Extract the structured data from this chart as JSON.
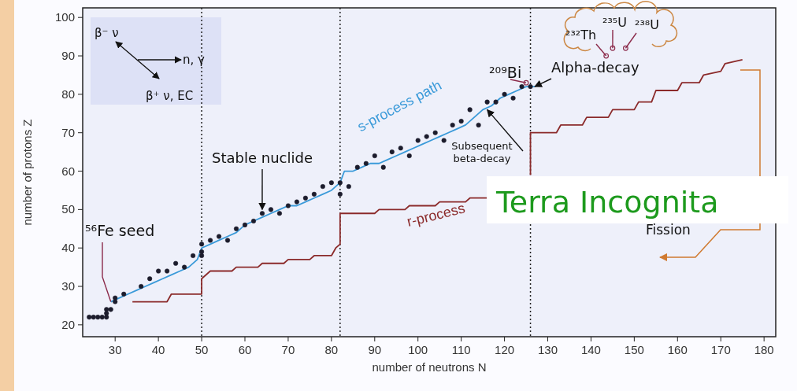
{
  "chart_data": {
    "type": "line",
    "xlabel": "number of neutrons N",
    "ylabel": "number of protons Z",
    "xlim": [
      22.5,
      182.7
    ],
    "ylim": [
      16.9,
      102.5
    ],
    "xticks": [
      30,
      40,
      50,
      60,
      70,
      80,
      90,
      100,
      110,
      120,
      130,
      140,
      150,
      160,
      170,
      180
    ],
    "yticks": [
      20,
      30,
      40,
      50,
      60,
      70,
      80,
      90,
      100
    ],
    "grid": false,
    "legend": false,
    "series": [
      {
        "type": "scatter",
        "marker": "circle",
        "color": "#1c1c2c",
        "x": [
          24,
          25,
          26,
          27,
          28,
          28,
          28,
          29,
          30,
          30,
          32,
          36,
          38,
          40,
          42,
          44,
          46,
          48,
          50,
          50,
          50,
          52,
          54,
          56,
          58,
          60,
          62,
          64,
          66,
          68,
          70,
          72,
          74,
          76,
          78,
          80,
          82,
          82,
          84,
          86,
          88,
          90,
          92,
          94,
          96,
          98,
          100,
          102,
          104,
          106,
          108,
          110,
          112,
          114,
          116,
          118,
          120,
          122,
          124,
          126
        ],
        "values": [
          22,
          22,
          22,
          22,
          22,
          23,
          24,
          24,
          26,
          27,
          28,
          30,
          32,
          34,
          34,
          36,
          35,
          38,
          38,
          39,
          41,
          42,
          43,
          42,
          45,
          46,
          47,
          49,
          50,
          49,
          51,
          52,
          53,
          54,
          56,
          57,
          57,
          54,
          56,
          61,
          62,
          64,
          61,
          65,
          66,
          64,
          68,
          69,
          70,
          68,
          72,
          73,
          76,
          72,
          78,
          78,
          80,
          79,
          82,
          82
        ]
      },
      {
        "name": "s-process path",
        "color": "#3a9ad9",
        "x": [
          29,
          31,
          33,
          35,
          37,
          39,
          41,
          43,
          45,
          47,
          49,
          50,
          52,
          54,
          56,
          58,
          60,
          62,
          64,
          66,
          68,
          70,
          72,
          74,
          76,
          78,
          80,
          82,
          83,
          85,
          87,
          89,
          91,
          93,
          95,
          97,
          99,
          101,
          103,
          105,
          107,
          109,
          111,
          113,
          115,
          117,
          119,
          121,
          123,
          125,
          127
        ],
        "values": [
          26,
          27,
          28,
          29,
          30,
          31,
          32,
          33,
          34,
          35,
          37,
          40,
          41,
          42,
          43,
          44,
          46,
          47,
          48,
          49,
          50,
          51,
          51,
          52,
          53,
          54,
          55,
          57,
          60,
          60,
          61,
          62,
          62,
          63,
          64,
          65,
          66,
          67,
          68,
          69,
          70,
          71,
          72,
          74,
          76,
          77,
          79,
          80,
          81,
          82,
          82
        ]
      },
      {
        "name": "r-process",
        "color": "#8b2a2a",
        "x": [
          34,
          42,
          43,
          50,
          50,
          52,
          57,
          58,
          63,
          64,
          69,
          70,
          75,
          76,
          80,
          81,
          82,
          82,
          90,
          91,
          97,
          98,
          104,
          105,
          111,
          112,
          116,
          117,
          123,
          126,
          126,
          132,
          133,
          138,
          139,
          144,
          145,
          150,
          151,
          154,
          155,
          160,
          161,
          165,
          166,
          170,
          171,
          175
        ],
        "values": [
          26,
          26,
          28,
          28,
          32,
          34,
          34,
          35,
          35,
          36,
          36,
          37,
          37,
          38,
          38,
          40,
          41,
          49,
          49,
          50,
          50,
          51,
          51,
          52,
          52,
          53,
          53,
          null,
          null,
          59,
          70,
          70,
          72,
          72,
          74,
          74,
          76,
          76,
          78,
          78,
          81,
          81,
          83,
          83,
          85,
          86,
          88,
          89
        ]
      }
    ],
    "ref_lines": [
      {
        "axis": "x",
        "value": 50,
        "color": "#222222",
        "line_style": "dotted"
      },
      {
        "axis": "x",
        "value": 82,
        "color": "#222222",
        "line_style": "dotted"
      },
      {
        "axis": "x",
        "value": 126,
        "color": "#222222",
        "line_style": "dotted"
      }
    ],
    "annotations": [
      {
        "text": "⁵⁶Fe seed",
        "x": 29,
        "y": 26
      },
      {
        "text": "Stable nuclide",
        "x": 64,
        "y": 50
      },
      {
        "text": "Subsequent beta-decay",
        "x": 116,
        "y": 76
      },
      {
        "text": "²⁰⁹Bi",
        "x": 125,
        "y": 83
      },
      {
        "text": "Alpha-decay",
        "x": 127,
        "y": 82
      },
      {
        "text": "²³²Th",
        "x": 143.5,
        "y": 90
      },
      {
        "text": "²³⁵U",
        "x": 145,
        "y": 92
      },
      {
        "text": "²³⁸U",
        "x": 148,
        "y": 92
      },
      "Terra Incognita",
      "Fission",
      "β⁻ ν",
      "n, γ",
      "β⁺ ν, EC"
    ]
  }
}
